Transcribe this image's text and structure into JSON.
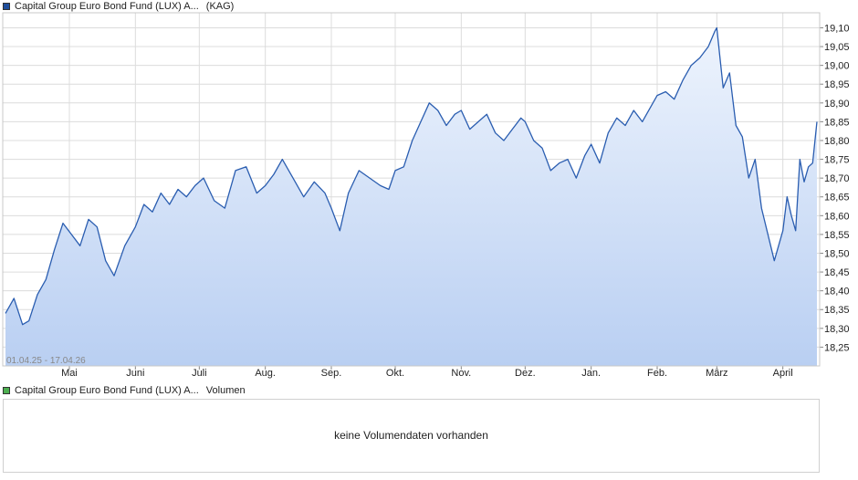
{
  "price_legend": {
    "name": "Capital Group Euro Bond Fund (LUX) A...",
    "exchange": "(KAG)",
    "color": "#1f4e9c"
  },
  "volume_legend": {
    "name": "Capital Group Euro Bond Fund (LUX) A...",
    "label": "Volumen",
    "color": "#4caf50"
  },
  "date_range": "01.04.25 - 17.04.26",
  "volume": {
    "message": "keine Volumendaten vorhanden"
  },
  "colors": {
    "line": "#2a5db0",
    "fill_top": "#eef4fd",
    "fill_bottom": "#b9cff2",
    "grid": "#dcdcdc"
  },
  "chart_data": {
    "type": "area",
    "x_tick_labels": [
      "Mai",
      "Juni",
      "Juli",
      "Aug.",
      "Sep.",
      "Okt.",
      "Nov.",
      "Dez.",
      "Jan.",
      "Feb.",
      "März",
      "April"
    ],
    "x_tick_dates": [
      "2025-05-01",
      "2025-06-01",
      "2025-07-01",
      "2025-08-01",
      "2025-09-01",
      "2025-10-01",
      "2025-11-01",
      "2025-12-01",
      "2026-01-01",
      "2026-02-01",
      "2026-03-01",
      "2026-04-01"
    ],
    "ylim": [
      18.2,
      19.14
    ],
    "y_ticks": [
      "18,25",
      "18,30",
      "18,35",
      "18,40",
      "18,45",
      "18,50",
      "18,55",
      "18,60",
      "18,65",
      "18,70",
      "18,75",
      "18,80",
      "18,85",
      "18,90",
      "18,95",
      "19,00",
      "19,05",
      "19,10"
    ],
    "y_tick_values": [
      18.25,
      18.3,
      18.35,
      18.4,
      18.45,
      18.5,
      18.55,
      18.6,
      18.65,
      18.7,
      18.75,
      18.8,
      18.85,
      18.9,
      18.95,
      19.0,
      19.05,
      19.1
    ],
    "grid": true,
    "series": [
      {
        "x": [
          "2025-04-01",
          "2025-04-05",
          "2025-04-09",
          "2025-04-12",
          "2025-04-16",
          "2025-04-20",
          "2025-04-24",
          "2025-04-28",
          "2025-05-02",
          "2025-05-06",
          "2025-05-10",
          "2025-05-14",
          "2025-05-18",
          "2025-05-22",
          "2025-05-27",
          "2025-06-01",
          "2025-06-05",
          "2025-06-09",
          "2025-06-13",
          "2025-06-17",
          "2025-06-21",
          "2025-06-25",
          "2025-06-29",
          "2025-07-03",
          "2025-07-08",
          "2025-07-13",
          "2025-07-18",
          "2025-07-23",
          "2025-07-28",
          "2025-08-01",
          "2025-08-05",
          "2025-08-09",
          "2025-08-14",
          "2025-08-19",
          "2025-08-24",
          "2025-08-29",
          "2025-09-01",
          "2025-09-05",
          "2025-09-09",
          "2025-09-14",
          "2025-09-19",
          "2025-09-24",
          "2025-09-28",
          "2025-10-01",
          "2025-10-05",
          "2025-10-09",
          "2025-10-13",
          "2025-10-17",
          "2025-10-21",
          "2025-10-25",
          "2025-10-29",
          "2025-11-01",
          "2025-11-05",
          "2025-11-09",
          "2025-11-13",
          "2025-11-17",
          "2025-11-21",
          "2025-11-25",
          "2025-11-29",
          "2025-12-01",
          "2025-12-05",
          "2025-12-09",
          "2025-12-13",
          "2025-12-17",
          "2025-12-21",
          "2025-12-25",
          "2025-12-29",
          "2026-01-01",
          "2026-01-05",
          "2026-01-09",
          "2026-01-13",
          "2026-01-17",
          "2026-01-21",
          "2026-01-25",
          "2026-01-29",
          "2026-02-01",
          "2026-02-05",
          "2026-02-09",
          "2026-02-13",
          "2026-02-17",
          "2026-02-21",
          "2026-02-25",
          "2026-02-28",
          "2026-03-01",
          "2026-03-04",
          "2026-03-07",
          "2026-03-10",
          "2026-03-13",
          "2026-03-16",
          "2026-03-19",
          "2026-03-22",
          "2026-03-25",
          "2026-03-28",
          "2026-04-01",
          "2026-04-03",
          "2026-04-05",
          "2026-04-07",
          "2026-04-09",
          "2026-04-11",
          "2026-04-13",
          "2026-04-15",
          "2026-04-17"
        ],
        "values": [
          18.34,
          18.38,
          18.31,
          18.32,
          18.39,
          18.43,
          18.51,
          18.58,
          18.55,
          18.52,
          18.59,
          18.57,
          18.48,
          18.44,
          18.52,
          18.57,
          18.63,
          18.61,
          18.66,
          18.63,
          18.67,
          18.65,
          18.68,
          18.7,
          18.64,
          18.62,
          18.72,
          18.73,
          18.66,
          18.68,
          18.71,
          18.75,
          18.7,
          18.65,
          18.69,
          18.66,
          18.62,
          18.56,
          18.66,
          18.72,
          18.7,
          18.68,
          18.67,
          18.72,
          18.73,
          18.8,
          18.85,
          18.9,
          18.88,
          18.84,
          18.87,
          18.88,
          18.83,
          18.85,
          18.87,
          18.82,
          18.8,
          18.83,
          18.86,
          18.85,
          18.8,
          18.78,
          18.72,
          18.74,
          18.75,
          18.7,
          18.76,
          18.79,
          18.74,
          18.82,
          18.86,
          18.84,
          18.88,
          18.85,
          18.89,
          18.92,
          18.93,
          18.91,
          18.96,
          19.0,
          19.02,
          19.05,
          19.09,
          19.1,
          18.94,
          18.98,
          18.84,
          18.81,
          18.7,
          18.75,
          18.62,
          18.55,
          18.48,
          18.56,
          18.65,
          18.6,
          18.56,
          18.75,
          18.69,
          18.73,
          18.74,
          18.85
        ]
      }
    ]
  }
}
